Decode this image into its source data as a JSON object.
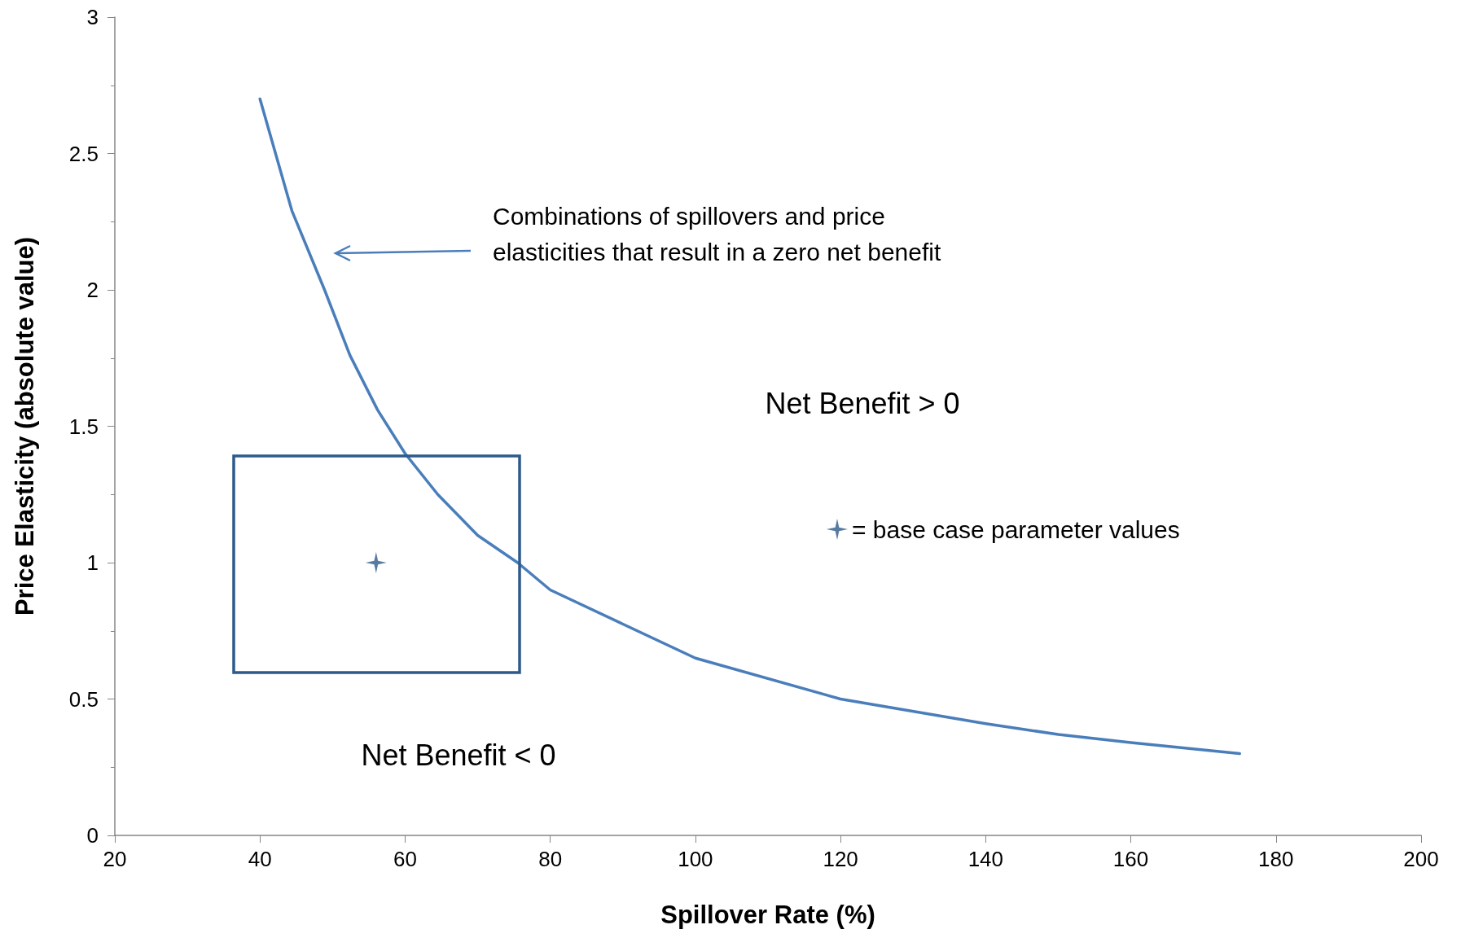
{
  "chart_data": {
    "type": "line",
    "xlabel": "Spillover Rate (%)",
    "ylabel": "Price Elasticity (absolute value)",
    "xlim": [
      20,
      200
    ],
    "xticks": [
      20,
      40,
      60,
      80,
      100,
      120,
      140,
      160,
      180,
      200
    ],
    "ylim": [
      0,
      3
    ],
    "yticks": [
      0,
      0.5,
      1,
      1.5,
      2,
      2.5,
      3
    ],
    "grid": false,
    "legend": "right",
    "marker": "none",
    "line_style": "solid",
    "series": [
      {
        "color": "#4a7ebb",
        "x": [
          40,
          44.4,
          48.9,
          52.4,
          56.2,
          60,
          64.5,
          70,
          75.5,
          80,
          100,
          120,
          140,
          150,
          160,
          175
        ],
        "values": [
          2.7,
          2.29,
          2.0,
          1.76,
          1.56,
          1.4,
          1.25,
          1.1,
          1.0,
          0.9,
          0.65,
          0.5,
          0.41,
          0.37,
          0.34,
          0.3
        ]
      },
      {
        "type": "scatter",
        "marker": "star",
        "name": "= base case parameter values",
        "color": "#2e5a8a",
        "x": [
          56
        ],
        "values": [
          1.0
        ]
      }
    ],
    "annotations": [
      "Combinations of spillovers and price\nelasticities that result in a zero net benefit",
      "Net Benefit > 0",
      "Net Benefit < 0"
    ]
  }
}
